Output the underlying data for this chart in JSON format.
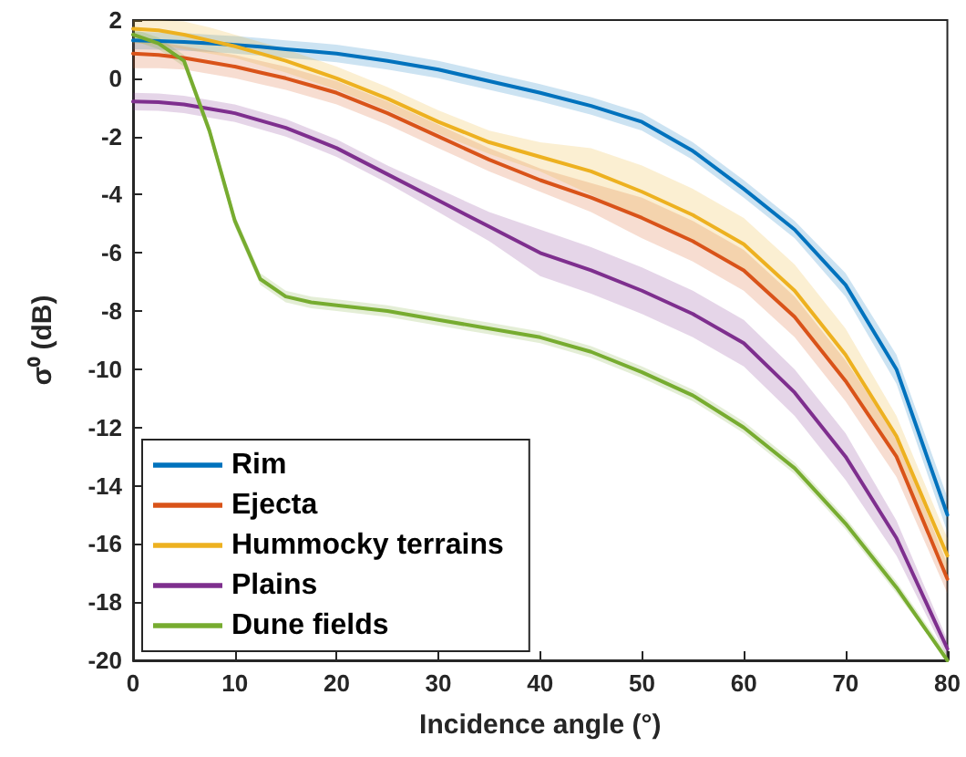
{
  "chart_data": {
    "type": "line",
    "xlabel": "Incidence angle (°)",
    "ylabel": "σ⁰ (dB)",
    "x": [
      0,
      2.5,
      5,
      7.5,
      10,
      12.5,
      15,
      17.5,
      20,
      25,
      30,
      35,
      40,
      45,
      50,
      55,
      60,
      65,
      70,
      75,
      80
    ],
    "xlim": [
      0,
      80
    ],
    "xticks": [
      0,
      10,
      20,
      30,
      40,
      50,
      60,
      70,
      80
    ],
    "ylim": [
      -20,
      2
    ],
    "yticks": [
      -20,
      -18,
      -16,
      -14,
      -12,
      -10,
      -8,
      -6,
      -4,
      -2,
      0,
      2
    ],
    "grid": false,
    "legend": "bottom left",
    "marker": "none",
    "line_style": "solid",
    "series": [
      {
        "name": "Rim",
        "color": "#0072bd",
        "values": [
          1.3,
          1.28,
          1.25,
          1.2,
          1.15,
          1.08,
          1.0,
          0.93,
          0.85,
          0.6,
          0.3,
          -0.1,
          -0.5,
          -0.95,
          -1.5,
          -2.5,
          -3.8,
          -5.2,
          -7.1,
          -10.0,
          -15.0
        ],
        "lower": [
          1.0,
          0.98,
          0.95,
          0.9,
          0.85,
          0.78,
          0.7,
          0.63,
          0.55,
          0.3,
          0.0,
          -0.4,
          -0.8,
          -1.25,
          -1.8,
          -2.8,
          -4.1,
          -5.5,
          -7.5,
          -10.5,
          -15.6
        ],
        "upper": [
          1.6,
          1.58,
          1.55,
          1.5,
          1.45,
          1.38,
          1.3,
          1.23,
          1.15,
          0.9,
          0.6,
          0.2,
          -0.2,
          -0.65,
          -1.2,
          -2.2,
          -3.5,
          -4.9,
          -6.7,
          -9.5,
          -14.4
        ]
      },
      {
        "name": "Ejecta",
        "color": "#d95319",
        "values": [
          0.85,
          0.8,
          0.7,
          0.55,
          0.4,
          0.2,
          0.0,
          -0.25,
          -0.5,
          -1.2,
          -2.0,
          -2.8,
          -3.5,
          -4.1,
          -4.8,
          -5.6,
          -6.6,
          -8.2,
          -10.4,
          -13.0,
          -17.2
        ],
        "lower": [
          0.35,
          0.35,
          0.3,
          0.15,
          0.0,
          -0.2,
          -0.4,
          -0.65,
          -0.9,
          -1.6,
          -2.4,
          -3.2,
          -3.9,
          -4.6,
          -5.5,
          -6.3,
          -7.3,
          -8.9,
          -11.1,
          -13.7,
          -17.7
        ],
        "upper": [
          1.35,
          1.25,
          1.1,
          0.95,
          0.8,
          0.6,
          0.4,
          0.15,
          -0.1,
          -0.8,
          -1.6,
          -2.4,
          -3.1,
          -3.6,
          -4.1,
          -4.9,
          -5.9,
          -7.5,
          -9.7,
          -12.3,
          -16.7
        ]
      },
      {
        "name": "Hummocky terrains",
        "color": "#edb120",
        "values": [
          1.7,
          1.65,
          1.5,
          1.3,
          1.1,
          0.85,
          0.6,
          0.3,
          0.0,
          -0.7,
          -1.5,
          -2.2,
          -2.7,
          -3.2,
          -3.9,
          -4.7,
          -5.7,
          -7.3,
          -9.5,
          -12.3,
          -16.4
        ],
        "lower": [
          1.2,
          1.15,
          1.0,
          0.85,
          0.7,
          0.45,
          0.2,
          -0.1,
          -0.4,
          -1.1,
          -1.9,
          -2.6,
          -3.2,
          -4.0,
          -4.8,
          -5.6,
          -6.6,
          -8.2,
          -10.4,
          -13.0,
          -17.0
        ],
        "upper": [
          2.0,
          2.0,
          1.95,
          1.75,
          1.5,
          1.25,
          1.0,
          0.7,
          0.4,
          -0.3,
          -1.1,
          -1.8,
          -2.2,
          -2.4,
          -3.0,
          -3.8,
          -4.8,
          -6.4,
          -8.6,
          -11.6,
          -15.8
        ]
      },
      {
        "name": "Plains",
        "color": "#7e2f8e",
        "values": [
          -0.8,
          -0.82,
          -0.9,
          -1.05,
          -1.2,
          -1.45,
          -1.7,
          -2.05,
          -2.4,
          -3.3,
          -4.2,
          -5.1,
          -6.0,
          -6.6,
          -7.3,
          -8.1,
          -9.1,
          -10.8,
          -13.0,
          -15.8,
          -19.6
        ],
        "lower": [
          -1.1,
          -1.12,
          -1.2,
          -1.35,
          -1.5,
          -1.75,
          -2.0,
          -2.35,
          -2.7,
          -3.6,
          -4.6,
          -5.6,
          -6.8,
          -7.4,
          -8.1,
          -8.9,
          -9.9,
          -11.6,
          -13.8,
          -16.4,
          -19.9
        ],
        "upper": [
          -0.5,
          -0.52,
          -0.6,
          -0.75,
          -0.9,
          -1.15,
          -1.4,
          -1.75,
          -2.1,
          -3.0,
          -3.8,
          -4.6,
          -5.2,
          -5.8,
          -6.5,
          -7.3,
          -8.3,
          -10.0,
          -12.2,
          -15.2,
          -19.3
        ]
      },
      {
        "name": "Dune fields",
        "color": "#77ac30",
        "values": [
          1.5,
          1.2,
          0.6,
          -1.8,
          -4.9,
          -6.9,
          -7.5,
          -7.7,
          -7.8,
          -8.0,
          -8.3,
          -8.6,
          -8.9,
          -9.4,
          -10.1,
          -10.9,
          -12.0,
          -13.4,
          -15.3,
          -17.5,
          -20.0
        ],
        "lower": [
          1.3,
          1.0,
          0.4,
          -2.0,
          -5.1,
          -7.1,
          -7.7,
          -7.9,
          -8.0,
          -8.2,
          -8.5,
          -8.8,
          -9.1,
          -9.6,
          -10.3,
          -11.1,
          -12.2,
          -13.6,
          -15.5,
          -17.7,
          -20.0
        ],
        "upper": [
          1.7,
          1.4,
          0.8,
          -1.6,
          -4.7,
          -6.7,
          -7.3,
          -7.5,
          -7.6,
          -7.8,
          -8.1,
          -8.4,
          -8.7,
          -9.2,
          -9.9,
          -10.7,
          -11.8,
          -13.2,
          -15.1,
          -17.3,
          -19.8
        ]
      }
    ]
  }
}
